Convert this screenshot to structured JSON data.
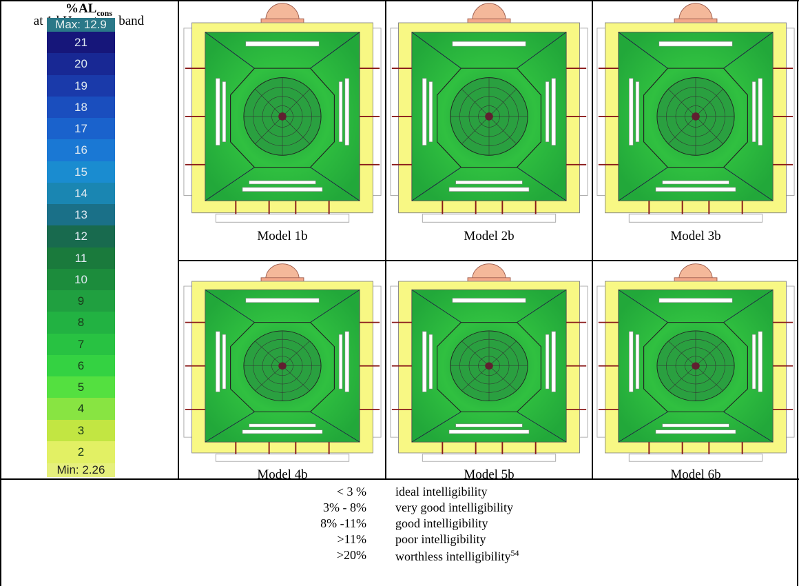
{
  "header": {
    "title": "%AL",
    "title_sub": "cons",
    "subtitle": "at 1 kHz octave band"
  },
  "colorbar": {
    "max": "Max: 12.9",
    "min": "Min: 2.26",
    "levels": [
      {
        "label": "21",
        "color": "#16167a"
      },
      {
        "label": "20",
        "color": "#182894"
      },
      {
        "label": "19",
        "color": "#1a3aaa"
      },
      {
        "label": "18",
        "color": "#1a4ebe"
      },
      {
        "label": "17",
        "color": "#1a62cc"
      },
      {
        "label": "16",
        "color": "#1a78d4"
      },
      {
        "label": "15",
        "color": "#1a8cd0"
      },
      {
        "label": "14",
        "color": "#1a86b2"
      },
      {
        "label": "13",
        "color": "#1a7088"
      },
      {
        "label": "12",
        "color": "#186a4e"
      },
      {
        "label": "11",
        "color": "#1a7a3c"
      },
      {
        "label": "10",
        "color": "#1c8c3c"
      },
      {
        "label": "9",
        "color": "#20a040"
      },
      {
        "label": "8",
        "color": "#22b242"
      },
      {
        "label": "7",
        "color": "#28c242"
      },
      {
        "label": "6",
        "color": "#34d242"
      },
      {
        "label": "5",
        "color": "#54e040"
      },
      {
        "label": "4",
        "color": "#88e442"
      },
      {
        "label": "3",
        "color": "#c2e642"
      },
      {
        "label": "2",
        "color": "#e2f064"
      }
    ]
  },
  "models": [
    "Model 1b",
    "Model 2b",
    "Model 3b",
    "Model 4b",
    "Model 5b",
    "Model 6b"
  ],
  "criteria": {
    "rows": [
      [
        "< 3 %",
        "ideal intelligibility"
      ],
      [
        "3% - 8%",
        "very good intelligibility"
      ],
      [
        "8% -11%",
        "good intelligibility"
      ],
      [
        ">11%",
        "poor intelligibility"
      ],
      [
        ">20%",
        "worthless intelligibility"
      ]
    ],
    "footnote": "54"
  }
}
